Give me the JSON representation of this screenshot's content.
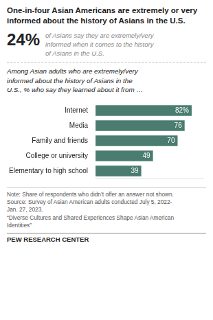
{
  "chart_data": {
    "type": "bar",
    "orientation": "horizontal",
    "title": "One-in-four Asian Americans are extremely or very informed about the history of Asians in the U.S.",
    "annotations": [
      "24%",
      "of Asians say they are extremely/very\ninformed when it comes to the history\nof Asians in the U.S.",
      "Among Asian adults who are extremely/very\ninformed about the history of Asians in the\nU.S., % who say they learned about it from …",
      "Note: Share of respondents who didn’t offer an answer not shown.\nSource: Survey of Asian American adults conducted July 5, 2022-\nJan. 27, 2023.\n“Diverse Cultures and Shared Experiences Shape Asian American\nIdentities”",
      "PEW RESEARCH CENTER"
    ],
    "categories": [
      "Internet",
      "Media",
      "Family and friends",
      "College or university",
      "Elementary to high school"
    ],
    "values": [
      82,
      76,
      70,
      49,
      39
    ],
    "value_labels": [
      "82%",
      "76",
      "70",
      "49",
      "39"
    ],
    "data_labels": true,
    "color": "#4a7c6f",
    "xlim": [
      0,
      92
    ],
    "grid": false,
    "tick_labels": "y"
  }
}
